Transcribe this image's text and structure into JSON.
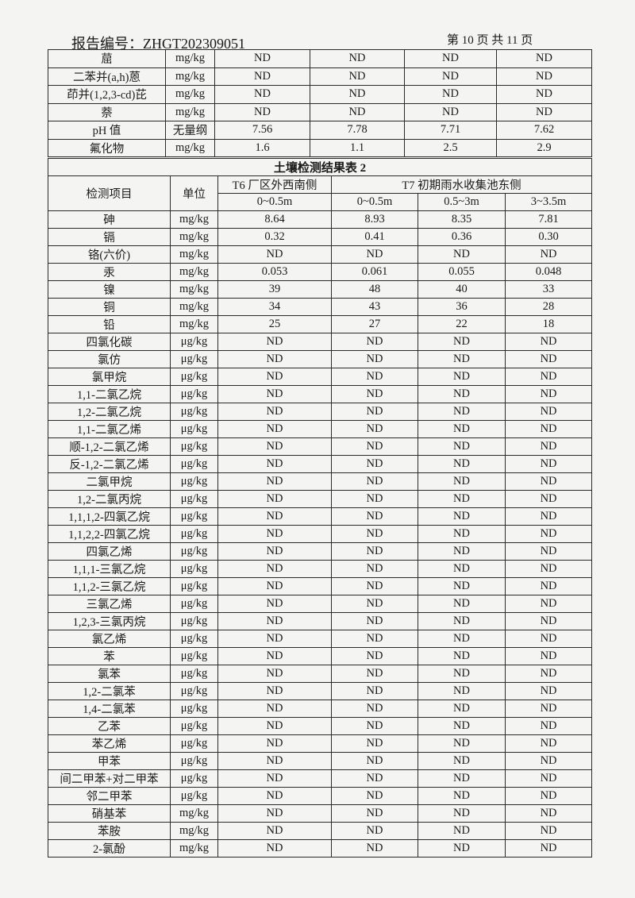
{
  "header": {
    "report_number": "报告编号：ZHGT202309051",
    "page_indicator": "第 10 页 共 11 页"
  },
  "table1": {
    "rows": [
      [
        "䓛",
        "mg/kg",
        "ND",
        "ND",
        "ND",
        "ND"
      ],
      [
        "二苯并(a,h)蒽",
        "mg/kg",
        "ND",
        "ND",
        "ND",
        "ND"
      ],
      [
        "茚并(1,2,3-cd)芘",
        "mg/kg",
        "ND",
        "ND",
        "ND",
        "ND"
      ],
      [
        "萘",
        "mg/kg",
        "ND",
        "ND",
        "ND",
        "ND"
      ],
      [
        "pH 值",
        "无量纲",
        "7.56",
        "7.78",
        "7.71",
        "7.62"
      ],
      [
        "氟化物",
        "mg/kg",
        "1.6",
        "1.1",
        "2.5",
        "2.9"
      ]
    ]
  },
  "table2": {
    "title": "土壤检测结果表 2",
    "col_item": "检测项目",
    "col_unit": "单位",
    "site1": "T6 厂区外西南侧",
    "site2": "T7 初期雨水收集池东侧",
    "depths": [
      "0~0.5m",
      "0~0.5m",
      "0.5~3m",
      "3~3.5m"
    ],
    "rows": [
      [
        "砷",
        "mg/kg",
        "8.64",
        "8.93",
        "8.35",
        "7.81"
      ],
      [
        "镉",
        "mg/kg",
        "0.32",
        "0.41",
        "0.36",
        "0.30"
      ],
      [
        "铬(六价)",
        "mg/kg",
        "ND",
        "ND",
        "ND",
        "ND"
      ],
      [
        "汞",
        "mg/kg",
        "0.053",
        "0.061",
        "0.055",
        "0.048"
      ],
      [
        "镍",
        "mg/kg",
        "39",
        "48",
        "40",
        "33"
      ],
      [
        "铜",
        "mg/kg",
        "34",
        "43",
        "36",
        "28"
      ],
      [
        "铅",
        "mg/kg",
        "25",
        "27",
        "22",
        "18"
      ],
      [
        "四氯化碳",
        "μg/kg",
        "ND",
        "ND",
        "ND",
        "ND"
      ],
      [
        "氯仿",
        "μg/kg",
        "ND",
        "ND",
        "ND",
        "ND"
      ],
      [
        "氯甲烷",
        "μg/kg",
        "ND",
        "ND",
        "ND",
        "ND"
      ],
      [
        "1,1-二氯乙烷",
        "μg/kg",
        "ND",
        "ND",
        "ND",
        "ND"
      ],
      [
        "1,2-二氯乙烷",
        "μg/kg",
        "ND",
        "ND",
        "ND",
        "ND"
      ],
      [
        "1,1-二氯乙烯",
        "μg/kg",
        "ND",
        "ND",
        "ND",
        "ND"
      ],
      [
        "顺-1,2-二氯乙烯",
        "μg/kg",
        "ND",
        "ND",
        "ND",
        "ND"
      ],
      [
        "反-1,2-二氯乙烯",
        "μg/kg",
        "ND",
        "ND",
        "ND",
        "ND"
      ],
      [
        "二氯甲烷",
        "μg/kg",
        "ND",
        "ND",
        "ND",
        "ND"
      ],
      [
        "1,2-二氯丙烷",
        "μg/kg",
        "ND",
        "ND",
        "ND",
        "ND"
      ],
      [
        "1,1,1,2-四氯乙烷",
        "μg/kg",
        "ND",
        "ND",
        "ND",
        "ND"
      ],
      [
        "1,1,2,2-四氯乙烷",
        "μg/kg",
        "ND",
        "ND",
        "ND",
        "ND"
      ],
      [
        "四氯乙烯",
        "μg/kg",
        "ND",
        "ND",
        "ND",
        "ND"
      ],
      [
        "1,1,1-三氯乙烷",
        "μg/kg",
        "ND",
        "ND",
        "ND",
        "ND"
      ],
      [
        "1,1,2-三氯乙烷",
        "μg/kg",
        "ND",
        "ND",
        "ND",
        "ND"
      ],
      [
        "三氯乙烯",
        "μg/kg",
        "ND",
        "ND",
        "ND",
        "ND"
      ],
      [
        "1,2,3-三氯丙烷",
        "μg/kg",
        "ND",
        "ND",
        "ND",
        "ND"
      ],
      [
        "氯乙烯",
        "μg/kg",
        "ND",
        "ND",
        "ND",
        "ND"
      ],
      [
        "苯",
        "μg/kg",
        "ND",
        "ND",
        "ND",
        "ND"
      ],
      [
        "氯苯",
        "μg/kg",
        "ND",
        "ND",
        "ND",
        "ND"
      ],
      [
        "1,2-二氯苯",
        "μg/kg",
        "ND",
        "ND",
        "ND",
        "ND"
      ],
      [
        "1,4-二氯苯",
        "μg/kg",
        "ND",
        "ND",
        "ND",
        "ND"
      ],
      [
        "乙苯",
        "μg/kg",
        "ND",
        "ND",
        "ND",
        "ND"
      ],
      [
        "苯乙烯",
        "μg/kg",
        "ND",
        "ND",
        "ND",
        "ND"
      ],
      [
        "甲苯",
        "μg/kg",
        "ND",
        "ND",
        "ND",
        "ND"
      ],
      [
        "间二甲苯+对二甲苯",
        "μg/kg",
        "ND",
        "ND",
        "ND",
        "ND"
      ],
      [
        "邻二甲苯",
        "μg/kg",
        "ND",
        "ND",
        "ND",
        "ND"
      ],
      [
        "硝基苯",
        "mg/kg",
        "ND",
        "ND",
        "ND",
        "ND"
      ],
      [
        "苯胺",
        "mg/kg",
        "ND",
        "ND",
        "ND",
        "ND"
      ],
      [
        "2-氯酚",
        "mg/kg",
        "ND",
        "ND",
        "ND",
        "ND"
      ]
    ]
  }
}
